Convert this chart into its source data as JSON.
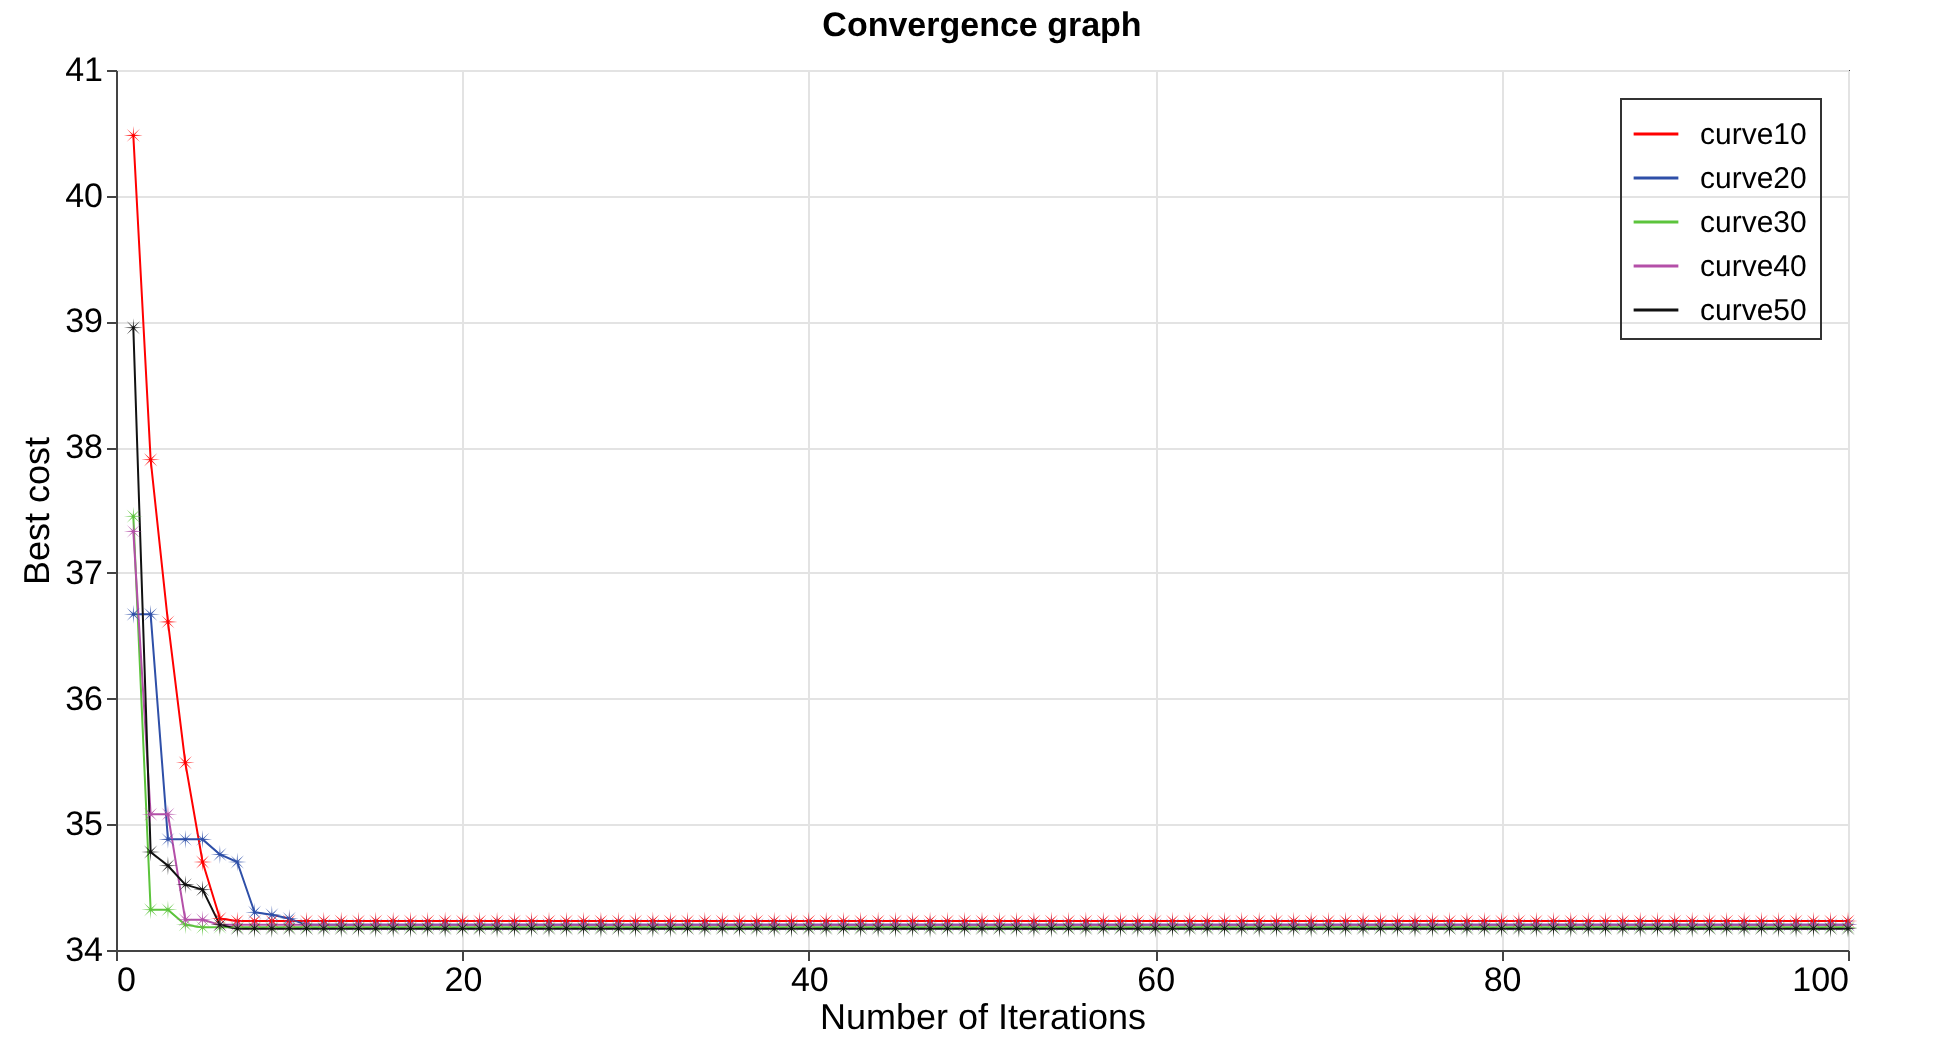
{
  "chart_data": {
    "type": "line",
    "title": "Convergence graph",
    "xlabel": "Number of Iterations",
    "ylabel": "Best cost",
    "x": [
      1,
      2,
      3,
      4,
      5,
      6,
      7,
      8,
      9,
      10,
      11,
      12,
      13,
      14,
      15,
      16,
      17,
      18,
      19,
      20,
      21,
      22,
      23,
      24,
      25,
      26,
      27,
      28,
      29,
      30,
      31,
      32,
      33,
      34,
      35,
      36,
      37,
      38,
      39,
      40,
      41,
      42,
      43,
      44,
      45,
      46,
      47,
      48,
      49,
      50,
      51,
      52,
      53,
      54,
      55,
      56,
      57,
      58,
      59,
      60,
      61,
      62,
      63,
      64,
      65,
      66,
      67,
      68,
      69,
      70,
      71,
      72,
      73,
      74,
      75,
      76,
      77,
      78,
      79,
      80,
      81,
      82,
      83,
      84,
      85,
      86,
      87,
      88,
      89,
      90,
      91,
      92,
      93,
      94,
      95,
      96,
      97,
      98,
      99,
      100
    ],
    "xlim": [
      0,
      100
    ],
    "xticks": [
      0,
      20,
      40,
      60,
      80,
      100
    ],
    "ylim": [
      34,
      41
    ],
    "yticks": [
      34,
      35,
      36,
      37,
      38,
      39,
      40,
      41
    ],
    "grid": true,
    "legend": "top right",
    "marker": "star",
    "series": [
      {
        "name": "curve10",
        "color": "#ff0000",
        "values": [
          40.48,
          37.9,
          36.61,
          35.49,
          34.7,
          34.25,
          34.23,
          34.23,
          34.23,
          34.23,
          34.23,
          34.23,
          34.23,
          34.23,
          34.23,
          34.23,
          34.23,
          34.23,
          34.23,
          34.23,
          34.23,
          34.23,
          34.23,
          34.23,
          34.23,
          34.23,
          34.23,
          34.23,
          34.23,
          34.23,
          34.23,
          34.23,
          34.23,
          34.23,
          34.23,
          34.23,
          34.23,
          34.23,
          34.23,
          34.23,
          34.23,
          34.23,
          34.23,
          34.23,
          34.23,
          34.23,
          34.23,
          34.23,
          34.23,
          34.23,
          34.23,
          34.23,
          34.23,
          34.23,
          34.23,
          34.23,
          34.23,
          34.23,
          34.23,
          34.23,
          34.23,
          34.23,
          34.23,
          34.23,
          34.23,
          34.23,
          34.23,
          34.23,
          34.23,
          34.23,
          34.23,
          34.23,
          34.23,
          34.23,
          34.23,
          34.23,
          34.23,
          34.23,
          34.23,
          34.23,
          34.23,
          34.23,
          34.23,
          34.23,
          34.23,
          34.23,
          34.23,
          34.23,
          34.23,
          34.23,
          34.23,
          34.23,
          34.23,
          34.23,
          34.23,
          34.23,
          34.23,
          34.23,
          34.23,
          34.23
        ]
      },
      {
        "name": "curve20",
        "color": "#2e4fa8",
        "values": [
          36.67,
          36.67,
          34.88,
          34.88,
          34.88,
          34.76,
          34.7,
          34.3,
          34.28,
          34.25,
          34.2,
          34.2,
          34.2,
          34.2,
          34.2,
          34.2,
          34.2,
          34.2,
          34.2,
          34.2,
          34.2,
          34.2,
          34.2,
          34.2,
          34.2,
          34.2,
          34.2,
          34.2,
          34.2,
          34.2,
          34.2,
          34.2,
          34.2,
          34.2,
          34.2,
          34.2,
          34.2,
          34.2,
          34.2,
          34.2,
          34.2,
          34.2,
          34.2,
          34.2,
          34.2,
          34.2,
          34.2,
          34.2,
          34.2,
          34.2,
          34.2,
          34.2,
          34.2,
          34.2,
          34.2,
          34.2,
          34.2,
          34.2,
          34.2,
          34.2,
          34.2,
          34.2,
          34.2,
          34.2,
          34.2,
          34.2,
          34.2,
          34.2,
          34.2,
          34.2,
          34.2,
          34.2,
          34.2,
          34.2,
          34.2,
          34.2,
          34.2,
          34.2,
          34.2,
          34.2,
          34.2,
          34.2,
          34.2,
          34.2,
          34.2,
          34.2,
          34.2,
          34.2,
          34.2,
          34.2,
          34.2,
          34.2,
          34.2,
          34.2,
          34.2,
          34.2,
          34.2,
          34.2,
          34.2,
          34.2
        ]
      },
      {
        "name": "curve30",
        "color": "#5cc43c",
        "values": [
          37.45,
          34.32,
          34.32,
          34.2,
          34.18,
          34.18,
          34.18,
          34.18,
          34.18,
          34.18,
          34.18,
          34.18,
          34.18,
          34.18,
          34.18,
          34.18,
          34.18,
          34.18,
          34.18,
          34.18,
          34.18,
          34.18,
          34.18,
          34.18,
          34.18,
          34.18,
          34.18,
          34.18,
          34.18,
          34.18,
          34.18,
          34.18,
          34.18,
          34.18,
          34.18,
          34.18,
          34.18,
          34.18,
          34.18,
          34.18,
          34.18,
          34.18,
          34.18,
          34.18,
          34.18,
          34.18,
          34.18,
          34.18,
          34.18,
          34.18,
          34.18,
          34.18,
          34.18,
          34.18,
          34.18,
          34.18,
          34.18,
          34.18,
          34.18,
          34.18,
          34.18,
          34.18,
          34.18,
          34.18,
          34.18,
          34.18,
          34.18,
          34.18,
          34.18,
          34.18,
          34.18,
          34.18,
          34.18,
          34.18,
          34.18,
          34.18,
          34.18,
          34.18,
          34.18,
          34.18,
          34.18,
          34.18,
          34.18,
          34.18,
          34.18,
          34.18,
          34.18,
          34.18,
          34.18,
          34.18,
          34.18,
          34.18,
          34.18,
          34.18,
          34.18,
          34.18,
          34.18,
          34.18,
          34.18,
          34.18
        ]
      },
      {
        "name": "curve40",
        "color": "#b44fa8",
        "values": [
          37.33,
          35.08,
          35.08,
          34.24,
          34.24,
          34.2,
          34.2,
          34.2,
          34.2,
          34.2,
          34.2,
          34.2,
          34.2,
          34.2,
          34.2,
          34.2,
          34.2,
          34.2,
          34.2,
          34.2,
          34.2,
          34.2,
          34.2,
          34.2,
          34.2,
          34.2,
          34.2,
          34.2,
          34.2,
          34.2,
          34.2,
          34.2,
          34.2,
          34.2,
          34.2,
          34.2,
          34.2,
          34.2,
          34.2,
          34.2,
          34.2,
          34.2,
          34.2,
          34.2,
          34.2,
          34.2,
          34.2,
          34.2,
          34.2,
          34.2,
          34.2,
          34.2,
          34.2,
          34.2,
          34.2,
          34.2,
          34.2,
          34.2,
          34.2,
          34.2,
          34.2,
          34.2,
          34.2,
          34.2,
          34.2,
          34.2,
          34.2,
          34.2,
          34.2,
          34.2,
          34.2,
          34.2,
          34.2,
          34.2,
          34.2,
          34.2,
          34.2,
          34.2,
          34.2,
          34.2,
          34.2,
          34.2,
          34.2,
          34.2,
          34.2,
          34.2,
          34.2,
          34.2,
          34.2,
          34.2,
          34.2,
          34.2,
          34.2,
          34.2,
          34.2,
          34.2,
          34.2,
          34.2,
          34.2,
          34.2
        ]
      },
      {
        "name": "curve50",
        "color": "#111111",
        "values": [
          38.95,
          34.78,
          34.67,
          34.52,
          34.48,
          34.2,
          34.17,
          34.17,
          34.17,
          34.17,
          34.17,
          34.17,
          34.17,
          34.17,
          34.17,
          34.17,
          34.17,
          34.17,
          34.17,
          34.17,
          34.17,
          34.17,
          34.17,
          34.17,
          34.17,
          34.17,
          34.17,
          34.17,
          34.17,
          34.17,
          34.17,
          34.17,
          34.17,
          34.17,
          34.17,
          34.17,
          34.17,
          34.17,
          34.17,
          34.17,
          34.17,
          34.17,
          34.17,
          34.17,
          34.17,
          34.17,
          34.17,
          34.17,
          34.17,
          34.17,
          34.17,
          34.17,
          34.17,
          34.17,
          34.17,
          34.17,
          34.17,
          34.17,
          34.17,
          34.17,
          34.17,
          34.17,
          34.17,
          34.17,
          34.17,
          34.17,
          34.17,
          34.17,
          34.17,
          34.17,
          34.17,
          34.17,
          34.17,
          34.17,
          34.17,
          34.17,
          34.17,
          34.17,
          34.17,
          34.17,
          34.17,
          34.17,
          34.17,
          34.17,
          34.17,
          34.17,
          34.17,
          34.17,
          34.17,
          34.17,
          34.17,
          34.17,
          34.17,
          34.17,
          34.17,
          34.17,
          34.17,
          34.17,
          34.17,
          34.17
        ]
      }
    ]
  }
}
